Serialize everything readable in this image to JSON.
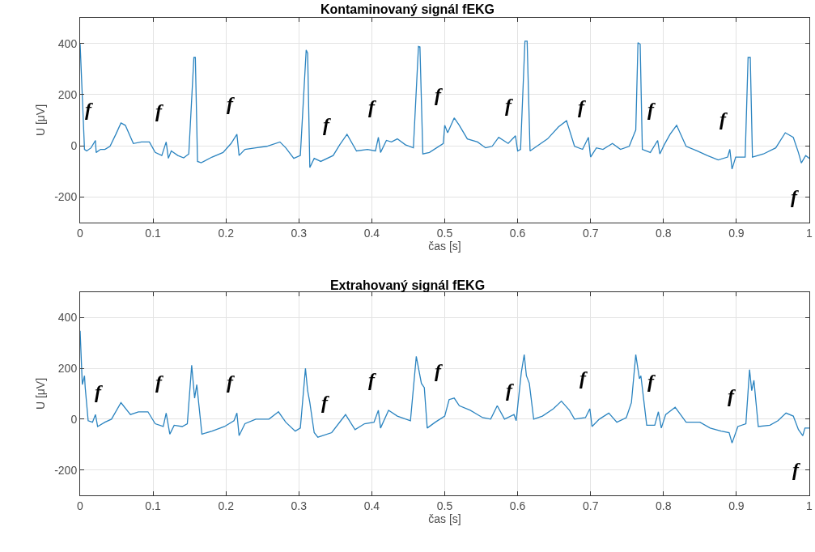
{
  "chart_data": [
    {
      "type": "line",
      "title": "Kontaminovaný signál fEKG",
      "xlabel": "čas [s]",
      "ylabel": "U [μV]",
      "xlim": [
        0,
        1
      ],
      "xticks": [
        0,
        0.1,
        0.2,
        0.3,
        0.4,
        0.5,
        0.6,
        0.7,
        0.8,
        0.9,
        1
      ],
      "ylim": [
        -300,
        500
      ],
      "yticks": [
        -200,
        0,
        200,
        400
      ],
      "grid": true,
      "x": [
        0,
        0.006,
        0.009,
        0.015,
        0.021,
        0.022,
        0.028,
        0.034,
        0.041,
        0.049,
        0.056,
        0.062,
        0.073,
        0.084,
        0.095,
        0.103,
        0.112,
        0.118,
        0.121,
        0.125,
        0.134,
        0.142,
        0.149,
        0.156,
        0.158,
        0.161,
        0.166,
        0.181,
        0.196,
        0.207,
        0.215,
        0.218,
        0.226,
        0.241,
        0.256,
        0.274,
        0.282,
        0.293,
        0.302,
        0.31,
        0.312,
        0.315,
        0.321,
        0.33,
        0.347,
        0.356,
        0.366,
        0.379,
        0.394,
        0.405,
        0.409,
        0.412,
        0.42,
        0.427,
        0.435,
        0.446,
        0.457,
        0.464,
        0.466,
        0.47,
        0.479,
        0.498,
        0.5,
        0.504,
        0.513,
        0.52,
        0.531,
        0.545,
        0.556,
        0.565,
        0.574,
        0.587,
        0.597,
        0.6,
        0.604,
        0.61,
        0.613,
        0.617,
        0.623,
        0.641,
        0.656,
        0.667,
        0.678,
        0.689,
        0.697,
        0.7,
        0.708,
        0.717,
        0.73,
        0.741,
        0.753,
        0.762,
        0.765,
        0.768,
        0.771,
        0.782,
        0.792,
        0.795,
        0.801,
        0.809,
        0.818,
        0.831,
        0.846,
        0.86,
        0.875,
        0.888,
        0.891,
        0.894,
        0.899,
        0.912,
        0.916,
        0.919,
        0.922,
        0.937,
        0.954,
        0.967,
        0.978,
        0.985,
        0.989,
        0.995,
        1
      ],
      "series": [
        {
          "color": "#2b84c0",
          "values": [
            398,
            -14,
            -20,
            -8,
            21,
            -26,
            -14,
            -14,
            -2,
            45,
            89,
            80,
            9,
            15,
            15,
            -26,
            -38,
            15,
            -49,
            -20,
            -38,
            -47,
            -32,
            345,
            345,
            -61,
            -66,
            -44,
            -26,
            9,
            45,
            -38,
            -14,
            -8,
            -2,
            15,
            -8,
            -49,
            -38,
            374,
            362,
            -85,
            -49,
            -61,
            -38,
            4,
            45,
            -20,
            -14,
            -20,
            33,
            -26,
            21,
            15,
            27,
            4,
            -8,
            388,
            386,
            -32,
            -26,
            9,
            80,
            51,
            109,
            80,
            27,
            15,
            -8,
            -2,
            33,
            9,
            39,
            -20,
            -14,
            409,
            409,
            -20,
            -8,
            27,
            74,
            98,
            -2,
            -14,
            33,
            -44,
            -8,
            -14,
            9,
            -14,
            -2,
            62,
            403,
            397,
            -14,
            -26,
            21,
            -32,
            4,
            45,
            80,
            -2,
            -20,
            -38,
            -55,
            -44,
            -14,
            -91,
            -44,
            -44,
            345,
            345,
            -44,
            -32,
            -8,
            51,
            33,
            -26,
            -67,
            -38,
            -49
          ]
        }
      ],
      "annotations": [
        {
          "text": "f",
          "x": 0.021,
          "y": 21
        },
        {
          "text": "f",
          "x": 0.118,
          "y": 15
        },
        {
          "text": "f",
          "x": 0.215,
          "y": 45
        },
        {
          "text": "f",
          "x": 0.347,
          "y": -38
        },
        {
          "text": "f",
          "x": 0.409,
          "y": 33
        },
        {
          "text": "f",
          "x": 0.5,
          "y": 80
        },
        {
          "text": "f",
          "x": 0.597,
          "y": 39
        },
        {
          "text": "f",
          "x": 0.697,
          "y": 33
        },
        {
          "text": "f",
          "x": 0.792,
          "y": 21
        },
        {
          "text": "f",
          "x": 0.891,
          "y": -14
        },
        {
          "text": "f",
          "x": 0.989,
          "y": -67
        }
      ]
    },
    {
      "type": "line",
      "title": "Extrahovaný signál fEKG",
      "xlabel": "čas [s]",
      "ylabel": "U [μV]",
      "xlim": [
        0,
        1
      ],
      "xticks": [
        0,
        0.1,
        0.2,
        0.3,
        0.4,
        0.5,
        0.6,
        0.7,
        0.8,
        0.9,
        1
      ],
      "ylim": [
        -300,
        500
      ],
      "yticks": [
        -200,
        0,
        200,
        400
      ],
      "grid": true,
      "x": [
        0,
        0.003,
        0.006,
        0.007,
        0.011,
        0.017,
        0.021,
        0.024,
        0.034,
        0.043,
        0.056,
        0.069,
        0.08,
        0.093,
        0.103,
        0.114,
        0.118,
        0.123,
        0.129,
        0.14,
        0.147,
        0.153,
        0.157,
        0.16,
        0.167,
        0.181,
        0.198,
        0.211,
        0.215,
        0.218,
        0.226,
        0.241,
        0.259,
        0.272,
        0.282,
        0.295,
        0.302,
        0.309,
        0.312,
        0.315,
        0.321,
        0.326,
        0.345,
        0.364,
        0.377,
        0.39,
        0.403,
        0.409,
        0.412,
        0.423,
        0.435,
        0.453,
        0.461,
        0.468,
        0.472,
        0.476,
        0.487,
        0.5,
        0.506,
        0.513,
        0.52,
        0.535,
        0.552,
        0.563,
        0.572,
        0.582,
        0.595,
        0.598,
        0.605,
        0.609,
        0.612,
        0.616,
        0.622,
        0.634,
        0.649,
        0.66,
        0.671,
        0.678,
        0.693,
        0.699,
        0.702,
        0.712,
        0.725,
        0.736,
        0.749,
        0.756,
        0.762,
        0.767,
        0.769,
        0.777,
        0.788,
        0.793,
        0.797,
        0.803,
        0.816,
        0.831,
        0.85,
        0.864,
        0.879,
        0.89,
        0.894,
        0.902,
        0.913,
        0.918,
        0.921,
        0.924,
        0.93,
        0.946,
        0.957,
        0.968,
        0.978,
        0.985,
        0.991,
        0.994,
        1
      ],
      "series": [
        {
          "color": "#2b84c0",
          "values": [
            348,
            136,
            171,
            124,
            -6,
            -12,
            18,
            -29,
            -12,
            0,
            65,
            18,
            29,
            29,
            -18,
            -29,
            24,
            -59,
            -24,
            -29,
            -18,
            212,
            83,
            136,
            -59,
            -47,
            -29,
            -6,
            24,
            -65,
            -18,
            0,
            0,
            29,
            -12,
            -47,
            -35,
            200,
            112,
            65,
            -53,
            -71,
            -53,
            18,
            -41,
            -18,
            -12,
            35,
            -35,
            35,
            12,
            -6,
            247,
            141,
            124,
            -35,
            -12,
            12,
            77,
            83,
            53,
            35,
            6,
            0,
            53,
            0,
            18,
            -6,
            183,
            254,
            171,
            141,
            0,
            12,
            41,
            71,
            35,
            0,
            6,
            41,
            -29,
            0,
            24,
            -12,
            6,
            65,
            254,
            159,
            171,
            -24,
            -24,
            29,
            -35,
            18,
            47,
            -12,
            -12,
            -35,
            -47,
            -53,
            -94,
            -29,
            -18,
            195,
            112,
            153,
            -29,
            -24,
            -6,
            24,
            12,
            -41,
            -65,
            -35,
            -35
          ]
        }
      ],
      "annotations": [
        {
          "text": "f",
          "x": 0.034,
          "y": -12
        },
        {
          "text": "f",
          "x": 0.118,
          "y": 24
        },
        {
          "text": "f",
          "x": 0.215,
          "y": 24
        },
        {
          "text": "f",
          "x": 0.345,
          "y": -53
        },
        {
          "text": "f",
          "x": 0.409,
          "y": 35
        },
        {
          "text": "f",
          "x": 0.5,
          "y": 71
        },
        {
          "text": "f",
          "x": 0.598,
          "y": -6
        },
        {
          "text": "f",
          "x": 0.699,
          "y": 41
        },
        {
          "text": "f",
          "x": 0.793,
          "y": 29
        },
        {
          "text": "f",
          "x": 0.902,
          "y": -29
        },
        {
          "text": "f",
          "x": 0.991,
          "y": -65
        }
      ]
    }
  ]
}
